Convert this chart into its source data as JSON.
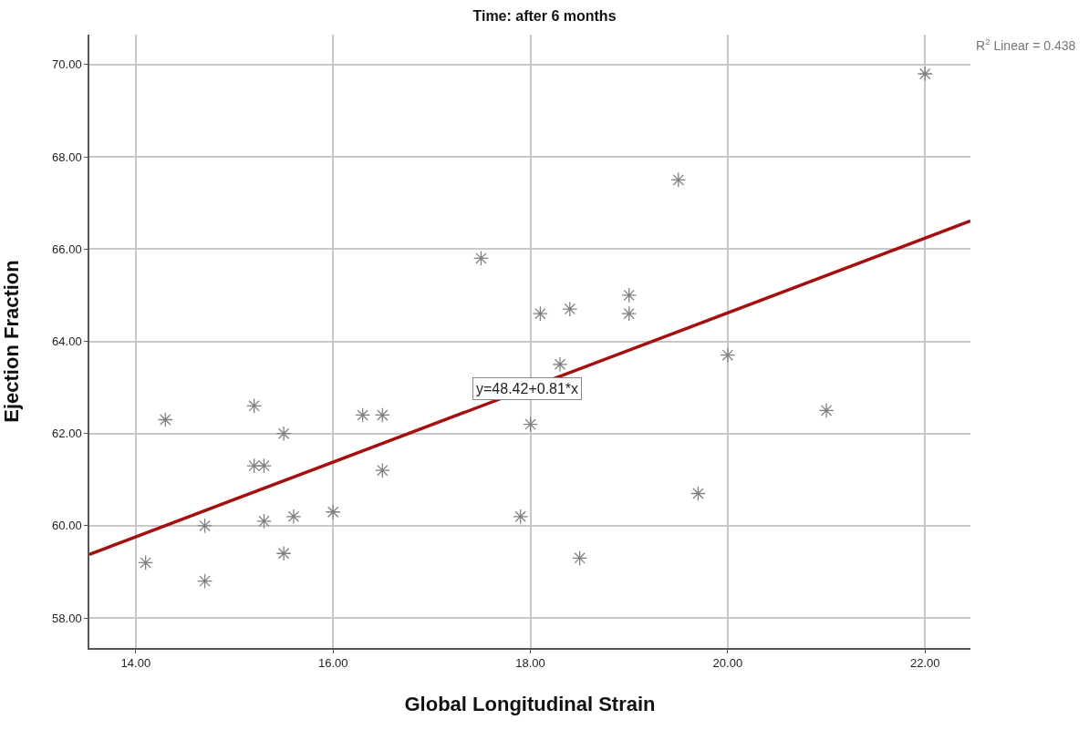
{
  "chart_data": {
    "type": "scatter",
    "title": "Time: after 6 months",
    "xlabel": "Global Longitudinal Strain",
    "ylabel": "Ejection Fraction",
    "x": [
      14.1,
      14.3,
      14.7,
      14.7,
      15.2,
      15.2,
      15.3,
      15.3,
      15.5,
      15.5,
      15.6,
      16.0,
      16.3,
      16.5,
      16.5,
      17.5,
      17.9,
      18.0,
      18.1,
      18.3,
      18.4,
      18.5,
      19.0,
      19.0,
      19.5,
      19.7,
      20.0,
      21.0,
      22.0
    ],
    "series": [
      {
        "color": "#808080",
        "marker": "cross",
        "values": [
          59.2,
          62.3,
          60.0,
          58.8,
          62.6,
          61.3,
          61.3,
          60.1,
          62.0,
          59.4,
          60.2,
          60.3,
          62.4,
          62.4,
          61.2,
          65.8,
          60.2,
          62.2,
          64.6,
          63.5,
          64.7,
          59.3,
          65.0,
          64.6,
          67.5,
          60.7,
          63.7,
          62.5,
          69.8
        ]
      },
      {
        "type": "line",
        "color": "#a50f0f",
        "marker": "none",
        "x": [
          13.53,
          22.46
        ],
        "values": [
          59.38,
          66.61
        ]
      }
    ],
    "annotations": [
      "y=48.42+0.81*x",
      "R$^{2}$ Linear = 0.438"
    ],
    "xlim": [
      13.53,
      22.46
    ],
    "ylim": [
      57.35,
      70.65
    ],
    "xticks": [
      {
        "value": 14,
        "label": "14.00"
      },
      {
        "value": 16,
        "label": "16.00"
      },
      {
        "value": 18,
        "label": "18.00"
      },
      {
        "value": 20,
        "label": "20.00"
      },
      {
        "value": 22,
        "label": "22.00"
      }
    ],
    "yticks": [
      {
        "value": 58,
        "label": "58.00"
      },
      {
        "value": 60,
        "label": "60.00"
      },
      {
        "value": 62,
        "label": "62.00"
      },
      {
        "value": 64,
        "label": "64.00"
      },
      {
        "value": 66,
        "label": "66.00"
      },
      {
        "value": 68,
        "label": "68.00"
      },
      {
        "value": 70,
        "label": "70.00"
      }
    ],
    "grid": true
  }
}
